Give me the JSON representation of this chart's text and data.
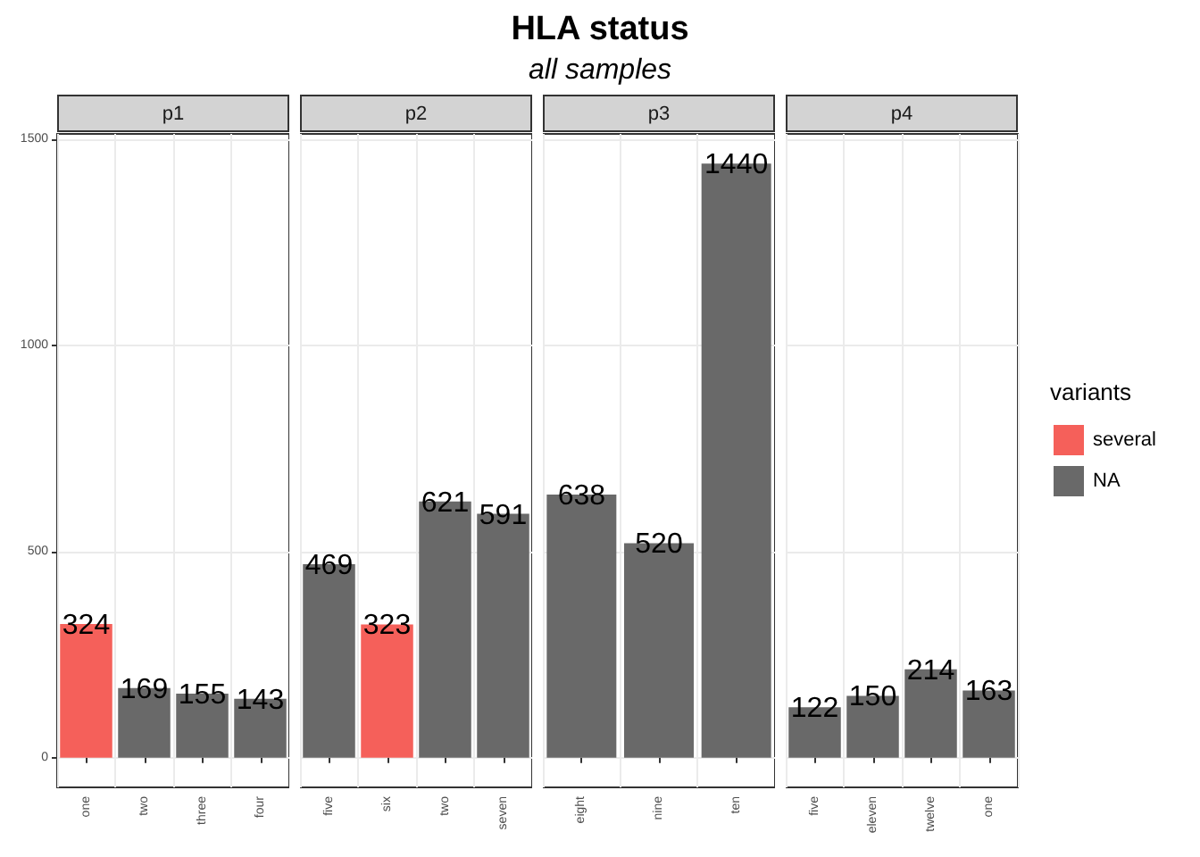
{
  "chart_data": [
    {
      "type": "other",
      "title": "HLA status",
      "subtitle": "all samples"
    },
    {
      "type": "bar",
      "title": "p1",
      "categories": [
        "one",
        "two",
        "three",
        "four"
      ],
      "stacked": true,
      "series": [
        {
          "color": "#f5605a",
          "values": [
            324,
            null,
            null,
            null
          ]
        },
        {
          "color": "#696969",
          "values": [
            null,
            169,
            155,
            143
          ]
        }
      ],
      "ylim": [
        -72,
        1512
      ],
      "yticks": [
        0,
        500,
        1000,
        1500
      ],
      "grid": true,
      "data_labels": true
    },
    {
      "type": "bar",
      "title": "p2",
      "categories": [
        "five",
        "six",
        "two",
        "seven"
      ],
      "stacked": true,
      "series": [
        {
          "color": "#f5605a",
          "values": [
            null,
            323,
            null,
            null
          ]
        },
        {
          "color": "#696969",
          "values": [
            469,
            null,
            621,
            591
          ]
        }
      ],
      "ylim": [
        -72,
        1512
      ],
      "yticks": [
        0,
        500,
        1000,
        1500
      ],
      "grid": true,
      "data_labels": true,
      "tick_labels": "x"
    },
    {
      "type": "bar",
      "title": "p3",
      "categories": [
        "eight",
        "nine",
        "ten"
      ],
      "series": [
        {
          "color": "#696969",
          "values": [
            638,
            520,
            1440
          ]
        }
      ],
      "ylim": [
        -72,
        1512
      ],
      "yticks": [
        0,
        500,
        1000,
        1500
      ],
      "grid": true,
      "data_labels": true,
      "tick_labels": "x"
    },
    {
      "type": "bar",
      "title": "p4",
      "categories": [
        "five",
        "eleven",
        "twelve",
        "one"
      ],
      "stacked": true,
      "series": [
        {
          "name": "several",
          "color": "#f5605a",
          "values": [
            null,
            null,
            null,
            null
          ]
        },
        {
          "name": "NA",
          "color": "#696969",
          "values": [
            122,
            150,
            214,
            163
          ]
        }
      ],
      "ylim": [
        -72,
        1512
      ],
      "yticks": [
        0,
        500,
        1000,
        1500
      ],
      "grid": true,
      "data_labels": true,
      "tick_labels": "x",
      "legend": "right",
      "legend_title": "variants"
    }
  ]
}
